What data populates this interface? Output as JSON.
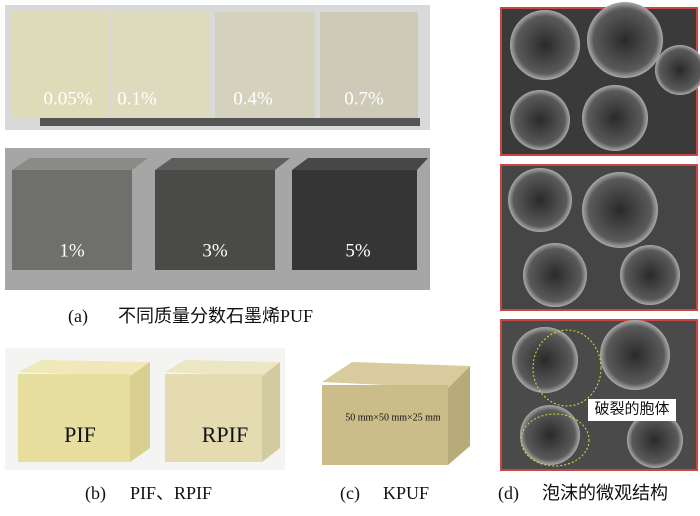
{
  "panel_a": {
    "top_labels": [
      "0.05%",
      "0.1%",
      "0.4%",
      "0.7%"
    ],
    "bottom_labels": [
      "1%",
      "3%",
      "5%"
    ],
    "tag": "(a)",
    "caption": "不同质量分数石墨烯PUF"
  },
  "panel_b": {
    "labels": [
      "PIF",
      "RPIF"
    ],
    "tag": "(b)",
    "caption": "PIF、RPIF"
  },
  "panel_c": {
    "dimension": "50 mm×50 mm×25 mm",
    "tag": "(c)",
    "caption": "KPUF"
  },
  "panel_d": {
    "annotation": "破裂的胞体",
    "tag": "(d)",
    "caption": "泡沫的微观结构"
  }
}
